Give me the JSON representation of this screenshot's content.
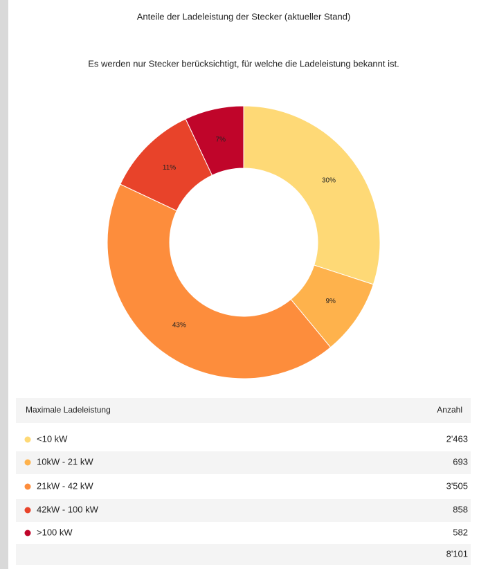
{
  "chart_data": {
    "type": "donut",
    "title": "Anteile der Ladeleistung der Stecker (aktueller Stand)",
    "subtitle": "Es werden nur Stecker berücksichtigt, für welche die Ladeleistung bekannt ist.",
    "categories": [
      "<10 kW",
      "10kW - 21 kW",
      "21kW - 42 kW",
      "42kW - 100 kW",
      ">100 kW"
    ],
    "values": [
      30,
      9,
      43,
      11,
      7
    ],
    "value_labels": [
      "30%",
      "9%",
      "43%",
      "11%",
      "7%"
    ],
    "colors": [
      "#fed976",
      "#feb24c",
      "#fd8d3c",
      "#e8432a",
      "#c0052a"
    ]
  },
  "table": {
    "header": [
      "Maximale Ladeleistung",
      "Anzahl"
    ],
    "counts": [
      "2'463",
      "693",
      "3'505",
      "858",
      "582"
    ],
    "total": "8'101"
  }
}
